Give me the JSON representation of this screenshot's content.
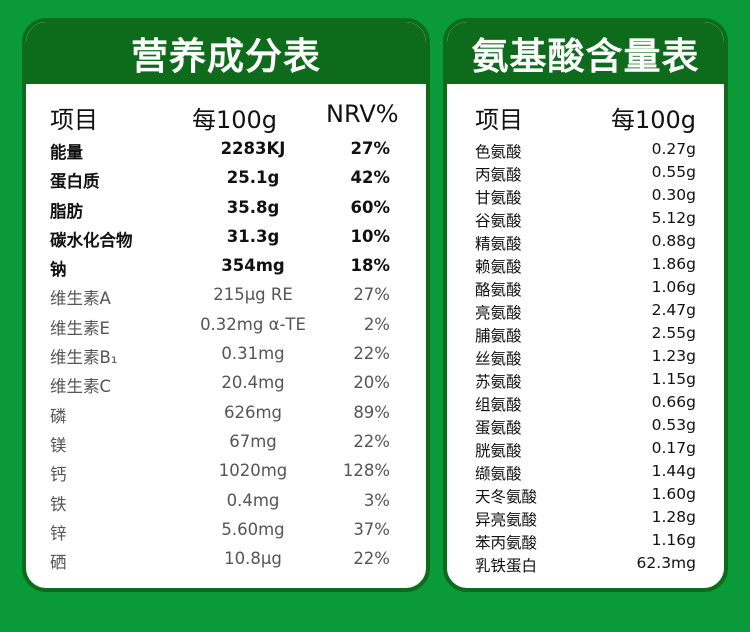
{
  "nutrition": {
    "title": "营养成分表",
    "headers": {
      "item": "项目",
      "per100": "每100g",
      "nrv": "NRV%"
    },
    "rows": [
      {
        "name": "能量",
        "amount": "2283KJ",
        "nrv": "27%",
        "bold": true
      },
      {
        "name": "蛋白质",
        "amount": "25.1g",
        "nrv": "42%",
        "bold": true
      },
      {
        "name": "脂肪",
        "amount": "35.8g",
        "nrv": "60%",
        "bold": true
      },
      {
        "name": "碳水化合物",
        "amount": "31.3g",
        "nrv": "10%",
        "bold": true
      },
      {
        "name": "钠",
        "amount": "354mg",
        "nrv": "18%",
        "bold": true
      },
      {
        "name": "维生素A",
        "amount": "215μg RE",
        "nrv": "27%",
        "bold": false
      },
      {
        "name": "维生素E",
        "amount": "0.32mg α-TE",
        "nrv": "2%",
        "bold": false
      },
      {
        "name": "维生素B₁",
        "amount": "0.31mg",
        "nrv": "22%",
        "bold": false
      },
      {
        "name": "维生素C",
        "amount": "20.4mg",
        "nrv": "20%",
        "bold": false
      },
      {
        "name": "磷",
        "amount": "626mg",
        "nrv": "89%",
        "bold": false
      },
      {
        "name": "镁",
        "amount": "67mg",
        "nrv": "22%",
        "bold": false
      },
      {
        "name": "钙",
        "amount": "1020mg",
        "nrv": "128%",
        "bold": false
      },
      {
        "name": "铁",
        "amount": "0.4mg",
        "nrv": "3%",
        "bold": false
      },
      {
        "name": "锌",
        "amount": "5.60mg",
        "nrv": "37%",
        "bold": false
      },
      {
        "name": "硒",
        "amount": "10.8μg",
        "nrv": "22%",
        "bold": false
      }
    ]
  },
  "amino": {
    "title": "氨基酸含量表",
    "headers": {
      "item": "项目",
      "per100": "每100g"
    },
    "rows": [
      {
        "name": "色氨酸",
        "amount": "0.27g"
      },
      {
        "name": "丙氨酸",
        "amount": "0.55g"
      },
      {
        "name": "甘氨酸",
        "amount": "0.30g"
      },
      {
        "name": "谷氨酸",
        "amount": "5.12g"
      },
      {
        "name": "精氨酸",
        "amount": "0.88g"
      },
      {
        "name": "赖氨酸",
        "amount": "1.86g"
      },
      {
        "name": "酪氨酸",
        "amount": "1.06g"
      },
      {
        "name": "亮氨酸",
        "amount": "2.47g"
      },
      {
        "name": "脯氨酸",
        "amount": "2.55g"
      },
      {
        "name": "丝氨酸",
        "amount": "1.23g"
      },
      {
        "name": "苏氨酸",
        "amount": "1.15g"
      },
      {
        "name": "组氨酸",
        "amount": "0.66g"
      },
      {
        "name": "蛋氨酸",
        "amount": "0.53g"
      },
      {
        "name": "胱氨酸",
        "amount": "0.17g"
      },
      {
        "name": "缬氨酸",
        "amount": "1.44g"
      },
      {
        "name": "天冬氨酸",
        "amount": "1.60g"
      },
      {
        "name": "异亮氨酸",
        "amount": "1.28g"
      },
      {
        "name": "苯丙氨酸",
        "amount": "1.16g"
      },
      {
        "name": "乳铁蛋白",
        "amount": "62.3mg"
      }
    ]
  },
  "colors": {
    "background": "#0a9a3a",
    "header": "#0e6b1b",
    "panel": "#ffffff"
  }
}
